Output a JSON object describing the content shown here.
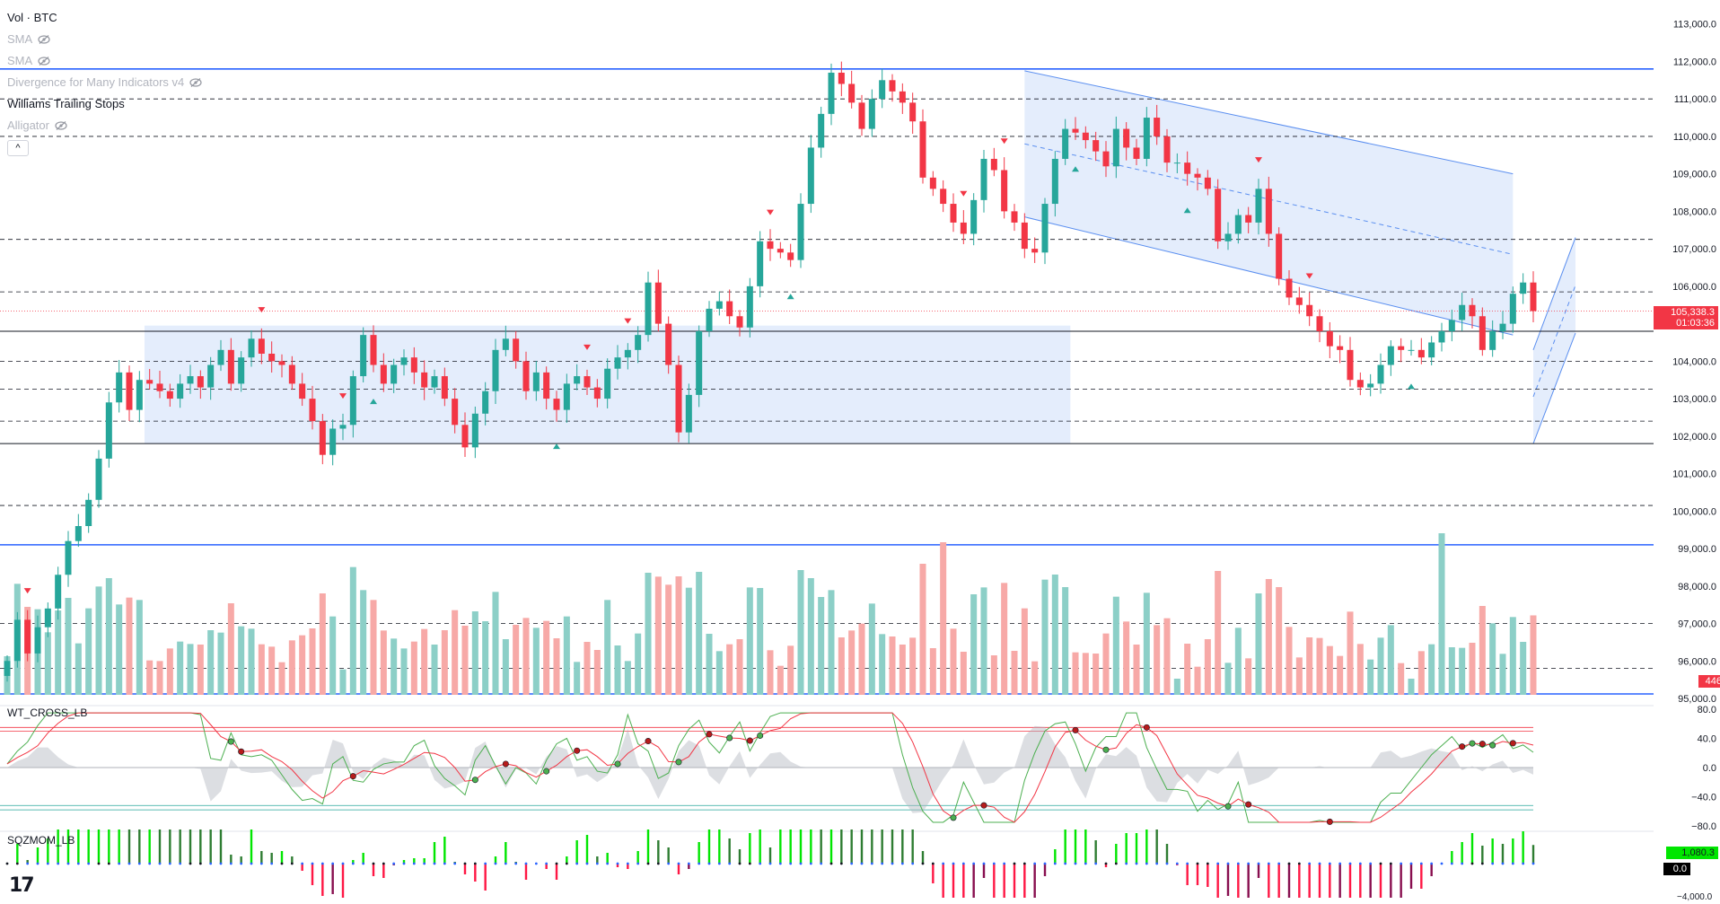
{
  "legend": {
    "title": "Vol · BTC",
    "items": [
      {
        "label": "SMA",
        "hidden": true
      },
      {
        "label": "SMA",
        "hidden": true
      },
      {
        "label": "Divergence for Many Indicators v4",
        "hidden": true
      },
      {
        "label": "Williams Trailing Stops",
        "hidden": false
      },
      {
        "label": "Alligator",
        "hidden": true
      }
    ],
    "collapse_symbol": "^"
  },
  "price_axis": {
    "labels": [
      "113,000.0",
      "112,000.0",
      "111,000.0",
      "110,000.0",
      "109,000.0",
      "108,000.0",
      "107,000.0",
      "106,000.0",
      "105,000.0",
      "104,000.0",
      "103,000.0",
      "102,000.0",
      "101,000.0",
      "100,000.0",
      "99,000.0",
      "98,000.0",
      "97,000.0",
      "96,000.0",
      "95,000.0"
    ],
    "values": [
      113000,
      112000,
      111000,
      110000,
      109000,
      108000,
      107000,
      106000,
      105000,
      104000,
      103000,
      102000,
      101000,
      100000,
      99000,
      98000,
      97000,
      96000,
      95000
    ],
    "current_price": "105,338.3",
    "countdown": "01:03:36",
    "volume_tag": "446"
  },
  "oscillator": {
    "label": "WT_CROSS_LB",
    "axis": [
      "80.0",
      "40.0",
      "0.0",
      "−40.0",
      "−80.0"
    ],
    "axis_values": [
      80,
      40,
      0,
      -40,
      -80
    ]
  },
  "momentum": {
    "label": "SQZMOM_LB",
    "value_tag": "1,080.3",
    "zero_tag": "0.0",
    "bottom_label": "−4,000.0"
  },
  "colors": {
    "up": "#26a69a",
    "down": "#f23645",
    "vol_up": "#8ccfc7",
    "vol_down": "#f7a9a7",
    "level": "#131722",
    "blue_line": "#2962ff",
    "zone_fill": "#dbe7fb",
    "channel": "#5b8ff0"
  },
  "chart_data": {
    "type": "candlestick",
    "symbol": "BTC",
    "y_range": [
      95000,
      113400
    ],
    "horizontal_levels_solid_blue": [
      111800,
      99100
    ],
    "horizontal_levels_solid_black": [
      104800,
      101800
    ],
    "horizontal_levels_dashed": [
      111000,
      110000,
      107250,
      105850,
      104000,
      103250,
      102400,
      100150,
      97000,
      95800
    ],
    "range_box": {
      "from_index": 14,
      "to_index": 104,
      "top": 104950,
      "bottom": 101800
    },
    "closes_anchor": [
      96000,
      97100,
      96200,
      96900,
      97400,
      98300,
      99200,
      99600,
      100300,
      101400,
      102900,
      103700,
      102700,
      103500,
      103400,
      103200,
      103000,
      103400,
      103600,
      103300,
      103900,
      104300,
      103400,
      104100,
      104600,
      104200,
      104000,
      103900,
      103400,
      103000,
      102400,
      101500,
      102200,
      102300,
      103600,
      104700,
      103900,
      103400,
      103900,
      104100,
      103700,
      103300,
      103600,
      103000,
      102300,
      101700,
      102600,
      103200,
      104300,
      104600,
      104000,
      103200,
      103700,
      103000,
      102700,
      103400,
      103600,
      103300,
      103000,
      103800,
      104100,
      104300,
      104700,
      106100,
      105000,
      103900,
      102100,
      103100,
      104800,
      105400,
      105600,
      105200,
      104900,
      106000,
      107200,
      107000,
      106900,
      106700,
      108200,
      109700,
      110600,
      111700,
      111400,
      110900,
      110200,
      111000,
      111500,
      111200,
      110900,
      110400,
      108900,
      108600,
      108200,
      107700,
      107400,
      108300,
      109400,
      109100,
      108000,
      107700,
      107000,
      106900,
      108200,
      109400,
      110200,
      110100,
      109900,
      109600,
      109200,
      110200,
      109700,
      109400,
      110500,
      110000,
      109300,
      109300,
      109000,
      108900,
      108600,
      107200,
      107400,
      107900,
      107700,
      108600,
      107400,
      106200,
      105700,
      105500,
      105200,
      104800,
      104400,
      104300,
      103500,
      103300,
      103400,
      103900,
      104400,
      104300,
      104300,
      104100,
      104500,
      104800,
      105100,
      105500,
      105200,
      104300,
      104800,
      105000,
      105800,
      106100,
      105338
    ],
    "volume_scale_note": "relative volume bars at bottom of price pane",
    "oscillator_lines": [
      "wt1 (green)",
      "wt2 (red)"
    ],
    "momentum_histogram": "squeeze momentum, lime/green positive, red/maroon negative"
  }
}
